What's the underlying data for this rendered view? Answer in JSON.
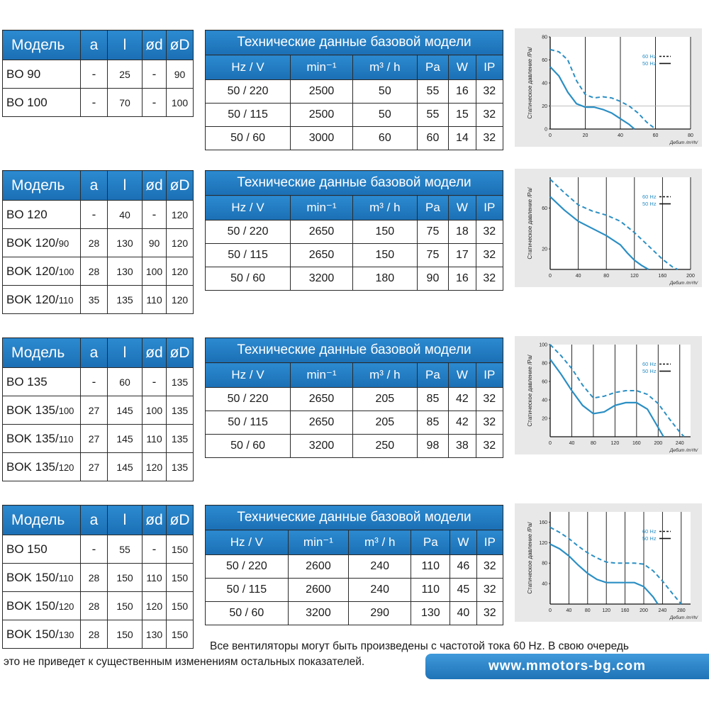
{
  "model_headers": [
    "Модель",
    "a",
    "l",
    "ød",
    "øD"
  ],
  "tech_title": "Технические данные базовой модели",
  "tech_headers": [
    "Hz / V",
    "min⁻¹",
    "m³ / h",
    "Pa",
    "W",
    "IP"
  ],
  "graph_ylabel": "Статическое давление /Pa/",
  "graph_xlabel": "Дебит /m³/h/",
  "legend_60": "60 Hz",
  "legend_50": "50 Hz",
  "sections": [
    {
      "models": [
        {
          "name": "BO 90",
          "suffix": "",
          "a": "-",
          "l": "25",
          "d": "-",
          "D": "90"
        },
        {
          "name": "BO 100",
          "suffix": "",
          "a": "-",
          "l": "70",
          "d": "-",
          "D": "100"
        }
      ],
      "tech": [
        [
          "50 / 220",
          "2500",
          "50",
          "55",
          "16",
          "32"
        ],
        [
          "50 / 115",
          "2500",
          "50",
          "55",
          "15",
          "32"
        ],
        [
          "50 / 60",
          "3000",
          "60",
          "60",
          "14",
          "32"
        ]
      ],
      "chart": {
        "xticks": [
          "0",
          "20",
          "40",
          "60",
          "80"
        ],
        "yticks": [
          "0",
          "20",
          "40",
          "60",
          "80"
        ],
        "xmax": 80,
        "ymax": 80,
        "hline": 20,
        "s60": [
          [
            0,
            69
          ],
          [
            5,
            67
          ],
          [
            10,
            60
          ],
          [
            15,
            42
          ],
          [
            20,
            30
          ],
          [
            25,
            27
          ],
          [
            30,
            28
          ],
          [
            35,
            27
          ],
          [
            40,
            24
          ],
          [
            45,
            20
          ],
          [
            50,
            14
          ],
          [
            55,
            6
          ],
          [
            60,
            0
          ]
        ],
        "s50": [
          [
            0,
            54
          ],
          [
            5,
            46
          ],
          [
            10,
            32
          ],
          [
            15,
            22
          ],
          [
            20,
            19
          ],
          [
            25,
            19
          ],
          [
            30,
            17
          ],
          [
            35,
            14
          ],
          [
            40,
            9
          ],
          [
            45,
            4
          ],
          [
            48,
            0
          ]
        ]
      }
    },
    {
      "models": [
        {
          "name": "BO 120",
          "suffix": "",
          "a": "-",
          "l": "40",
          "d": "-",
          "D": "120"
        },
        {
          "name": "BOK 120/",
          "suffix": "90",
          "a": "28",
          "l": "130",
          "d": "90",
          "D": "120"
        },
        {
          "name": "BOK 120/",
          "suffix": "100",
          "a": "28",
          "l": "130",
          "d": "100",
          "D": "120"
        },
        {
          "name": "BOK 120/",
          "suffix": "110",
          "a": "35",
          "l": "135",
          "d": "110",
          "D": "120"
        }
      ],
      "tech": [
        [
          "50 / 220",
          "2650",
          "150",
          "75",
          "18",
          "32"
        ],
        [
          "50 / 115",
          "2650",
          "150",
          "75",
          "17",
          "32"
        ],
        [
          "50 / 60",
          "3200",
          "180",
          "90",
          "16",
          "32"
        ]
      ],
      "chart": {
        "xticks": [
          "0",
          "40",
          "80",
          "120",
          "160",
          "200"
        ],
        "yticks": [
          "20",
          "60"
        ],
        "xmax": 200,
        "ymax": 90,
        "s60": [
          [
            0,
            88
          ],
          [
            20,
            75
          ],
          [
            40,
            63
          ],
          [
            60,
            57
          ],
          [
            80,
            53
          ],
          [
            100,
            47
          ],
          [
            120,
            36
          ],
          [
            140,
            23
          ],
          [
            160,
            10
          ],
          [
            175,
            2
          ],
          [
            182,
            0
          ]
        ],
        "s50": [
          [
            0,
            71
          ],
          [
            20,
            58
          ],
          [
            40,
            47
          ],
          [
            60,
            40
          ],
          [
            80,
            33
          ],
          [
            100,
            24
          ],
          [
            110,
            16
          ],
          [
            120,
            9
          ],
          [
            130,
            4
          ],
          [
            140,
            0
          ]
        ]
      }
    },
    {
      "models": [
        {
          "name": "BO 135",
          "suffix": "",
          "a": "-",
          "l": "60",
          "d": "-",
          "D": "135"
        },
        {
          "name": "BOK 135/",
          "suffix": "100",
          "a": "27",
          "l": "145",
          "d": "100",
          "D": "135"
        },
        {
          "name": "BOK 135/",
          "suffix": "110",
          "a": "27",
          "l": "145",
          "d": "110",
          "D": "135"
        },
        {
          "name": "BOK 135/",
          "suffix": "120",
          "a": "27",
          "l": "145",
          "d": "120",
          "D": "135"
        }
      ],
      "tech": [
        [
          "50 / 220",
          "2650",
          "205",
          "85",
          "42",
          "32"
        ],
        [
          "50 / 115",
          "2650",
          "205",
          "85",
          "42",
          "32"
        ],
        [
          "50 / 60",
          "3200",
          "250",
          "98",
          "38",
          "32"
        ]
      ],
      "chart": {
        "xticks": [
          "0",
          "40",
          "80",
          "120",
          "160",
          "200",
          "240"
        ],
        "yticks": [
          "20",
          "40",
          "60",
          "80",
          "100"
        ],
        "xmax": 260,
        "ymax": 100,
        "s60": [
          [
            0,
            100
          ],
          [
            20,
            88
          ],
          [
            40,
            74
          ],
          [
            60,
            56
          ],
          [
            80,
            42
          ],
          [
            100,
            44
          ],
          [
            120,
            48
          ],
          [
            140,
            50
          ],
          [
            160,
            50
          ],
          [
            180,
            46
          ],
          [
            200,
            36
          ],
          [
            220,
            20
          ],
          [
            240,
            5
          ],
          [
            248,
            0
          ]
        ],
        "s50": [
          [
            0,
            84
          ],
          [
            20,
            68
          ],
          [
            40,
            50
          ],
          [
            60,
            34
          ],
          [
            80,
            25
          ],
          [
            100,
            27
          ],
          [
            120,
            34
          ],
          [
            140,
            37
          ],
          [
            160,
            37
          ],
          [
            180,
            30
          ],
          [
            200,
            10
          ],
          [
            210,
            0
          ]
        ]
      }
    },
    {
      "models": [
        {
          "name": "BO 150",
          "suffix": "",
          "a": "-",
          "l": "55",
          "d": "-",
          "D": "150"
        },
        {
          "name": "BOK 150/",
          "suffix": "110",
          "a": "28",
          "l": "150",
          "d": "110",
          "D": "150"
        },
        {
          "name": "BOK 150/",
          "suffix": "120",
          "a": "28",
          "l": "150",
          "d": "120",
          "D": "150"
        },
        {
          "name": "BOK 150/",
          "suffix": "130",
          "a": "28",
          "l": "150",
          "d": "130",
          "D": "150"
        }
      ],
      "tech": [
        [
          "50 / 220",
          "2600",
          "240",
          "110",
          "46",
          "32"
        ],
        [
          "50 / 115",
          "2600",
          "240",
          "110",
          "45",
          "32"
        ],
        [
          "50 / 60",
          "3200",
          "290",
          "130",
          "40",
          "32"
        ]
      ],
      "chart": {
        "xticks": [
          "0",
          "40",
          "80",
          "120",
          "160",
          "200",
          "240",
          "280"
        ],
        "yticks": [
          "40",
          "80",
          "120",
          "160"
        ],
        "xmax": 300,
        "ymax": 180,
        "s60": [
          [
            0,
            150
          ],
          [
            20,
            140
          ],
          [
            40,
            128
          ],
          [
            60,
            113
          ],
          [
            80,
            100
          ],
          [
            100,
            90
          ],
          [
            120,
            82
          ],
          [
            140,
            80
          ],
          [
            160,
            80
          ],
          [
            180,
            80
          ],
          [
            200,
            78
          ],
          [
            220,
            65
          ],
          [
            240,
            45
          ],
          [
            260,
            22
          ],
          [
            280,
            0
          ]
        ],
        "s50": [
          [
            0,
            117
          ],
          [
            20,
            108
          ],
          [
            40,
            94
          ],
          [
            60,
            76
          ],
          [
            80,
            60
          ],
          [
            100,
            48
          ],
          [
            120,
            42
          ],
          [
            140,
            42
          ],
          [
            160,
            42
          ],
          [
            180,
            42
          ],
          [
            200,
            34
          ],
          [
            220,
            14
          ],
          [
            230,
            0
          ]
        ]
      }
    }
  ],
  "footer_line1": "Все вентиляторы могут быть произведены с частотой тока 60 Hz. В свою очередь",
  "footer_line2": "это не приведет к существенным изменениям остальных показателей.",
  "site_url": "www.mmotors-bg.com",
  "colors": {
    "accent": "#1c74b8",
    "curve": "#2b8fc4",
    "graph_bg": "#e8e8e8"
  }
}
